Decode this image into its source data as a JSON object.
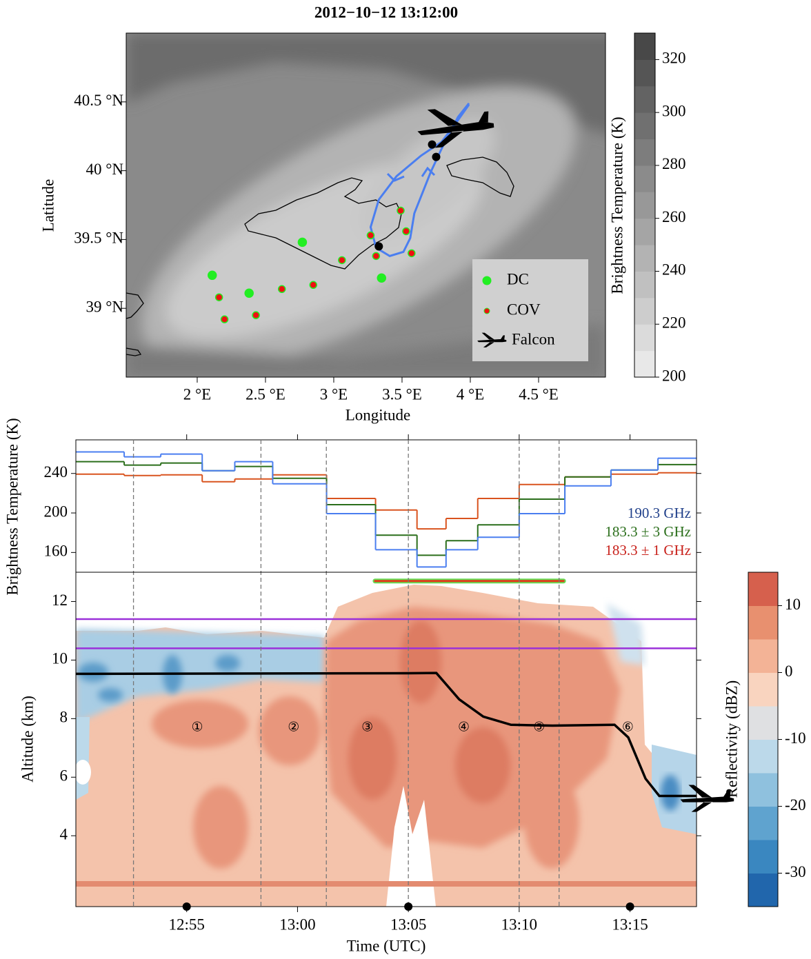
{
  "chart_data": [
    {
      "type": "map",
      "title": "2012−10−12 13:12:00",
      "xlabel": "Longitude",
      "ylabel": "Latitude",
      "xlim": [
        1.48,
        4.99
      ],
      "ylim": [
        38.5,
        41.0
      ],
      "xticks": [
        {
          "value": 2,
          "label": "2 °E"
        },
        {
          "value": 2.5,
          "label": "2.5 °E"
        },
        {
          "value": 3,
          "label": "3 °E"
        },
        {
          "value": 3.5,
          "label": "3.5 °E"
        },
        {
          "value": 4,
          "label": "4 °E"
        },
        {
          "value": 4.5,
          "label": "4.5 °E"
        }
      ],
      "yticks": [
        {
          "value": 39,
          "label": "39 °N"
        },
        {
          "value": 39.5,
          "label": "39.5 °N"
        },
        {
          "value": 40,
          "label": "40 °N"
        },
        {
          "value": 40.5,
          "label": "40.5 °N"
        }
      ],
      "series": [
        {
          "name": "DC",
          "color": "#22ee22",
          "x": [
            2.11,
            2.38,
            2.77,
            3.35
          ],
          "y": [
            39.24,
            39.11,
            39.48,
            39.22
          ]
        },
        {
          "name": "COV",
          "color": "#ee1111",
          "edge": "#22ee22",
          "x": [
            2.16,
            2.2,
            2.43,
            2.62,
            2.85,
            3.06,
            3.27,
            3.31,
            3.49,
            3.53,
            3.57
          ],
          "y": [
            39.08,
            38.92,
            38.95,
            39.14,
            39.17,
            39.35,
            39.53,
            39.38,
            39.71,
            39.56,
            39.4
          ]
        },
        {
          "name": "Falcon",
          "color": "#000000",
          "x": [
            3.89
          ],
          "y": [
            40.31
          ]
        }
      ],
      "track": {
        "color": "#4a7ef0",
        "x": [
          3.99,
          3.89,
          3.79,
          3.64,
          3.46,
          3.33,
          3.27,
          3.31,
          3.41,
          3.51,
          3.56,
          3.59,
          3.65,
          3.71,
          3.79,
          3.91,
          3.99
        ],
        "y": [
          40.48,
          40.34,
          40.21,
          40.11,
          39.96,
          39.79,
          39.59,
          39.44,
          39.38,
          39.41,
          39.51,
          39.69,
          39.84,
          39.99,
          40.16,
          40.39,
          40.49
        ]
      },
      "points": {
        "color": "#000000",
        "x": [
          3.72,
          3.75,
          3.33
        ],
        "y": [
          40.19,
          40.1,
          39.45
        ]
      },
      "colorbar": {
        "label": "Brightness Temperature (K)",
        "lim": [
          200,
          330
        ],
        "ticks": [
          200,
          220,
          240,
          260,
          280,
          300,
          320
        ]
      }
    },
    {
      "type": "line",
      "step": true,
      "ylabel": "Brightness Temperature (K)",
      "xlim": [
        770,
        798
      ],
      "ylim": [
        140,
        274
      ],
      "yticks": [
        160,
        200,
        240
      ],
      "x": [
        770,
        772.18,
        773.83,
        775.7,
        777.17,
        778.88,
        781.31,
        783.52,
        785.39,
        786.7,
        788.13,
        790.0,
        792.06,
        794.14,
        796.26
      ],
      "series": [
        {
          "name": "190.3 GHz",
          "color": "#4a7ef0",
          "label_color": "#1f3f8a",
          "values": [
            261.8,
            256.8,
            259.6,
            242.8,
            251.9,
            229.5,
            199.3,
            162.8,
            145.3,
            162.8,
            175.4,
            199.3,
            227.4,
            243.5,
            255.4
          ]
        },
        {
          "name": "183.3 ± 3 GHz",
          "color": "#2a6e1a",
          "label_color": "#2a6e1a",
          "values": [
            251.9,
            248.4,
            250.5,
            242.8,
            247.0,
            235.1,
            208.4,
            177.5,
            157.2,
            171.9,
            188.0,
            214.0,
            236.5,
            243.5,
            249.0
          ]
        },
        {
          "name": "183.3 ± 1 GHz",
          "color": "#d9531e",
          "label_color": "#c8201a",
          "values": [
            239.3,
            237.9,
            238.6,
            231.6,
            234.4,
            238.6,
            214.7,
            203.0,
            183.9,
            194.4,
            214.7,
            228.8,
            236.5,
            239.3,
            240.7
          ]
        }
      ]
    },
    {
      "type": "curtain",
      "xlabel": "Time (UTC)",
      "ylabel": "Altitude (km)",
      "xlim": [
        770,
        798
      ],
      "ylim": [
        1.58,
        13.0
      ],
      "xticks": [
        {
          "value": 775,
          "label": "12:55"
        },
        {
          "value": 780,
          "label": "13:00"
        },
        {
          "value": 785,
          "label": "13:05"
        },
        {
          "value": 790,
          "label": "13:10"
        },
        {
          "value": 795,
          "label": "13:15"
        }
      ],
      "yticks": [
        4,
        6,
        8,
        10,
        12
      ],
      "flight": {
        "color": "#000000",
        "x": [
          770,
          785,
          786.26,
          787.29,
          788.38,
          789.63,
          791.5,
          794.3,
          794.92,
          795.7,
          796.32,
          798
        ],
        "y": [
          9.53,
          9.55,
          9.56,
          8.66,
          8.07,
          7.79,
          7.76,
          7.79,
          7.36,
          5.95,
          5.36,
          5.36
        ]
      },
      "hlines": {
        "color": "#9b30d9",
        "values": [
          11.4,
          10.4
        ]
      },
      "bar": {
        "x": [
          783.5,
          792.0
        ],
        "y": 12.7,
        "color": "#e03a1a",
        "edge": "#66dd55"
      },
      "dividers": [
        772.6,
        778.35,
        781.3,
        785.0,
        790.0,
        791.8
      ],
      "regions": [
        "①",
        "②",
        "③",
        "④",
        "⑤",
        "⑥"
      ],
      "markers": [
        775,
        785,
        795
      ],
      "colorbar": {
        "label": "Reflectivity (dBZ)",
        "lim": [
          -35,
          15
        ],
        "ticks": [
          10,
          0,
          -10,
          -20,
          -30
        ],
        "colors": [
          "#2166ac",
          "#3a87c0",
          "#5fa3cf",
          "#8fc1de",
          "#bcd9ea",
          "#dfe0e2",
          "#f9d4bf",
          "#f3b396",
          "#e8906f",
          "#d6604d"
        ]
      }
    }
  ]
}
